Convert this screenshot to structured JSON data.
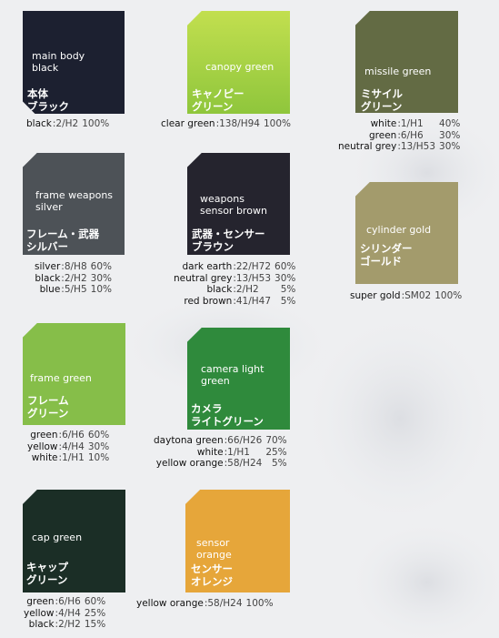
{
  "swatches": [
    {
      "id": "main-body-black",
      "en": "main body\nblack",
      "jp": "本体\nブラック",
      "color": "#1c2030",
      "mix": [
        {
          "name": "black",
          "code": ":2/H2",
          "pct": "100%"
        }
      ]
    },
    {
      "id": "canopy-green",
      "en": "canopy green",
      "jp": "キャノピー\nグリーン",
      "color": "#8fc63c",
      "color2": "#c2df4f",
      "mix": [
        {
          "name": "clear green",
          "code": ":138/H94",
          "pct": "100%"
        }
      ]
    },
    {
      "id": "missile-green",
      "en": "missile green",
      "jp": "ミサイル\nグリーン",
      "color": "#636b44",
      "mix": [
        {
          "name": "white",
          "code": ":1/H1",
          "pct": "40%"
        },
        {
          "name": "green",
          "code": ":6/H6",
          "pct": "30%"
        },
        {
          "name": "neutral grey",
          "code": ":13/H53",
          "pct": "30%"
        }
      ]
    },
    {
      "id": "frame-weapons-silver",
      "en": "frame weapons\nsilver",
      "jp": "フレーム・武器\nシルバー",
      "color": "#4d5257",
      "mix": [
        {
          "name": "silver",
          "code": ":8/H8",
          "pct": "60%"
        },
        {
          "name": "black",
          "code": ":2/H2",
          "pct": "30%"
        },
        {
          "name": "blue",
          "code": ":5/H5",
          "pct": "10%"
        }
      ]
    },
    {
      "id": "weapons-sensor-brown",
      "en": "weapons\nsensor brown",
      "jp": "武器・センサー\nブラウン",
      "color": "#25242e",
      "mix": [
        {
          "name": "dark earth",
          "code": ":22/H72",
          "pct": "60%"
        },
        {
          "name": "neutral grey",
          "code": ":13/H53",
          "pct": "30%"
        },
        {
          "name": "black",
          "code": ":2/H2",
          "pct": "5%"
        },
        {
          "name": "red brown",
          "code": ":41/H47",
          "pct": "5%"
        }
      ]
    },
    {
      "id": "cylinder-gold",
      "en": "cylinder gold",
      "jp": "シリンダー\nゴールド",
      "color": "#a39b6c",
      "mix": [
        {
          "name": "super gold",
          "code": ":SM02",
          "pct": "100%"
        }
      ]
    },
    {
      "id": "frame-green",
      "en": "frame green",
      "jp": "フレーム\nグリーン",
      "color": "#86be49",
      "mix": [
        {
          "name": "green",
          "code": ":6/H6",
          "pct": "60%"
        },
        {
          "name": "yellow",
          "code": ":4/H4",
          "pct": "30%"
        },
        {
          "name": "white",
          "code": ":1/H1",
          "pct": "10%"
        }
      ]
    },
    {
      "id": "camera-light-green",
      "en": "camera light\ngreen",
      "jp": "カメラ\nライトグリーン",
      "color": "#2f8a3c",
      "mix": [
        {
          "name": "daytona green",
          "code": ":66/H26",
          "pct": "70%"
        },
        {
          "name": "white",
          "code": ":1/H1",
          "pct": "25%"
        },
        {
          "name": "yellow orange",
          "code": ":58/H24",
          "pct": "5%"
        }
      ]
    },
    {
      "id": "cap-green",
      "en": "cap green",
      "jp": "キャップ\nグリーン",
      "color": "#1b2e26",
      "mix": [
        {
          "name": "green",
          "code": ":6/H6",
          "pct": "60%"
        },
        {
          "name": "yellow",
          "code": ":4/H4",
          "pct": "25%"
        },
        {
          "name": "black",
          "code": ":2/H2",
          "pct": "15%"
        }
      ]
    },
    {
      "id": "sensor-orange",
      "en": "sensor\norange",
      "jp": "センサー\nオレンジ",
      "color": "#e6a63a",
      "mix": [
        {
          "name": "yellow orange",
          "code": ":58/H24",
          "pct": "100%"
        }
      ]
    }
  ]
}
